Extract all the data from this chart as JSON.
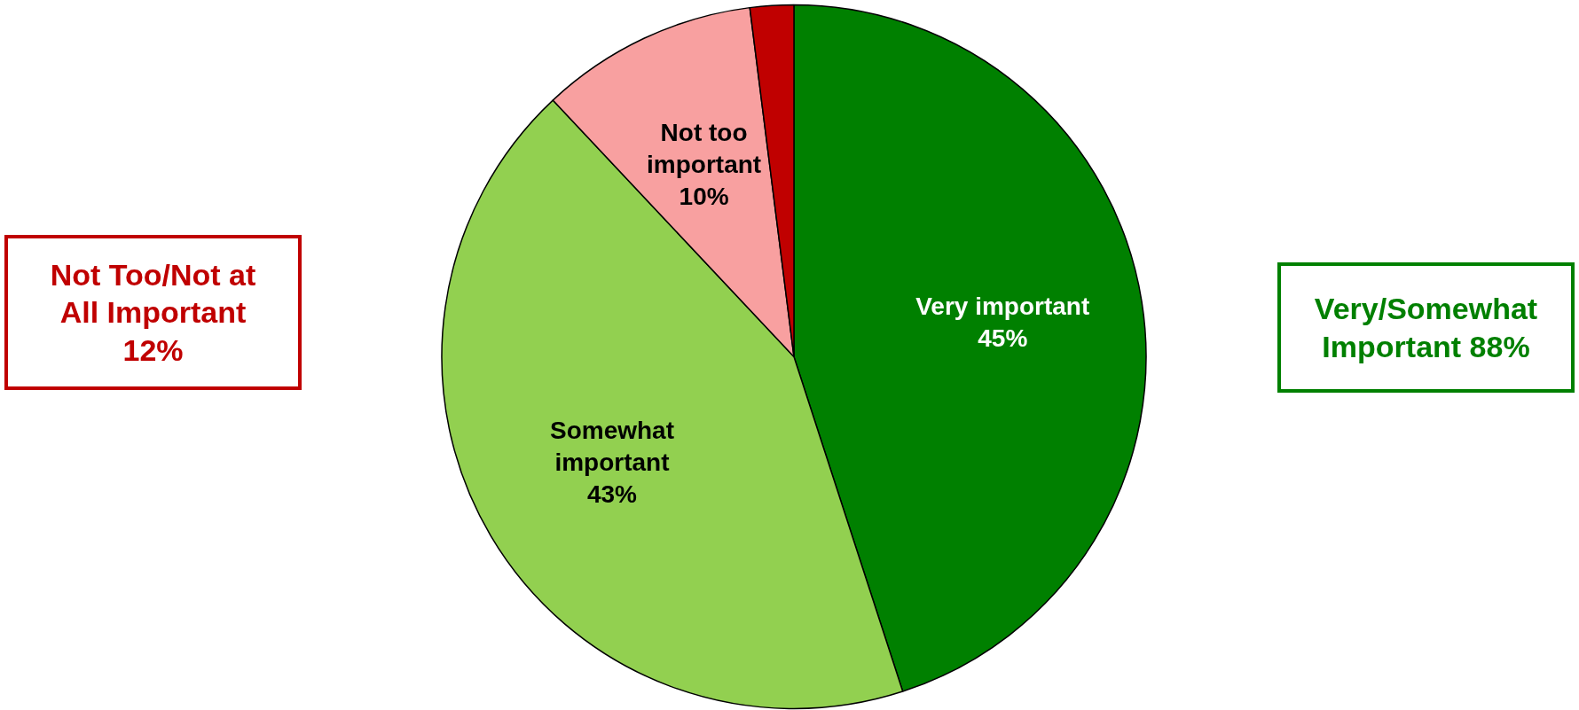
{
  "chart_data": {
    "type": "pie",
    "categories": [
      "Very important",
      "Somewhat important",
      "Not too important",
      null
    ],
    "values": [
      45,
      43,
      10,
      2
    ],
    "colors": [
      "#008000",
      "#92d050",
      "#f8a0a0",
      "#c00000"
    ],
    "value_labels": [
      "45%",
      "43%",
      "10%",
      null
    ],
    "legend": false,
    "annotations": [
      "Not Too/Not at All Important 12%",
      "Very/Somewhat Important 88%"
    ]
  }
}
